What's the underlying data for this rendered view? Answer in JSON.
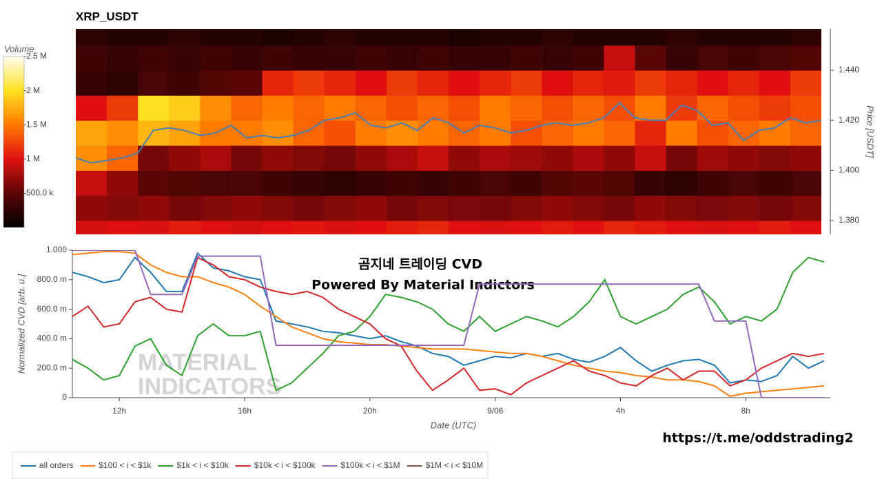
{
  "chart_data": [
    {
      "type": "heatmap",
      "title": "XRP_USDT",
      "colorbar_title": "Volume",
      "y_label": "Price [USDT]",
      "xlim": [
        10.5,
        34.5
      ],
      "xbins": [
        10.5,
        11.5,
        12.5,
        13.5,
        14.5,
        15.5,
        16.5,
        17.5,
        18.5,
        19.5,
        20.5,
        21.5,
        22.5,
        23.5,
        24.5,
        25.5,
        26.5,
        27.5,
        28.5,
        29.5,
        30.5,
        31.5,
        32.5,
        33.5,
        34.5
      ],
      "ybins": [
        1.37,
        1.38,
        1.39,
        1.4,
        1.41,
        1.42,
        1.43,
        1.44,
        1.45,
        1.46
      ],
      "z": [
        [
          950000,
          1000000,
          980000,
          1050000,
          1000000,
          950000,
          1000000,
          1020000,
          980000,
          1000000,
          1050000,
          1100000,
          1000000,
          980000,
          1000000,
          1050000,
          1000000,
          1100000,
          1050000,
          1000000,
          980000,
          1000000,
          1050000,
          1000000
        ],
        [
          700000,
          650000,
          700000,
          600000,
          650000,
          700000,
          650000,
          600000,
          650000,
          700000,
          600000,
          650000,
          620000,
          600000,
          650000,
          700000,
          650000,
          600000,
          700000,
          650000,
          620000,
          650000,
          600000,
          650000
        ],
        [
          900000,
          700000,
          500000,
          450000,
          400000,
          400000,
          350000,
          300000,
          250000,
          300000,
          350000,
          300000,
          350000,
          400000,
          350000,
          450000,
          500000,
          450000,
          300000,
          250000,
          350000,
          400000,
          350000,
          400000
        ],
        [
          1600000,
          1400000,
          600000,
          700000,
          800000,
          600000,
          700000,
          650000,
          600000,
          700000,
          800000,
          900000,
          700000,
          800000,
          750000,
          700000,
          800000,
          700000,
          900000,
          600000,
          750000,
          700000,
          650000,
          700000
        ],
        [
          1700000,
          1600000,
          1800000,
          1700000,
          1500000,
          1500000,
          1600000,
          1400000,
          1300000,
          1500000,
          1600000,
          1500000,
          1400000,
          1500000,
          1300000,
          1400000,
          1500000,
          1400000,
          1100000,
          1500000,
          1300000,
          1400000,
          1500000,
          1400000
        ],
        [
          1000000,
          1200000,
          2000000,
          1900000,
          1600000,
          1400000,
          1500000,
          1400000,
          1500000,
          1400000,
          1300000,
          1400000,
          1300000,
          1500000,
          1400000,
          1300000,
          1400000,
          1300000,
          1500000,
          1200000,
          1400000,
          1300000,
          1200000,
          1300000
        ],
        [
          300000,
          250000,
          400000,
          350000,
          450000,
          500000,
          1100000,
          1200000,
          1100000,
          1000000,
          1200000,
          1100000,
          1000000,
          1100000,
          1200000,
          1000000,
          1100000,
          1050000,
          1200000,
          1100000,
          1000000,
          1100000,
          1000000,
          1200000
        ],
        [
          350000,
          300000,
          350000,
          300000,
          350000,
          300000,
          350000,
          300000,
          300000,
          350000,
          300000,
          350000,
          300000,
          300000,
          350000,
          300000,
          350000,
          900000,
          500000,
          300000,
          400000,
          350000,
          400000,
          450000
        ],
        [
          250000,
          200000,
          200000,
          250000,
          200000,
          200000,
          150000,
          200000,
          250000,
          200000,
          200000,
          200000,
          150000,
          200000,
          200000,
          250000,
          200000,
          200000,
          200000,
          250000,
          200000,
          200000,
          200000,
          250000
        ]
      ],
      "zlim": [
        0,
        2500000
      ],
      "colorscale": [
        "#000000",
        "#5a0606",
        "#e01010",
        "#ff7a00",
        "#ffe020",
        "#fffff0"
      ],
      "colorbar_ticks": [
        {
          "value": 500000,
          "label": "500.0 k"
        },
        {
          "value": 1000000,
          "label": "1 M"
        },
        {
          "value": 1500000,
          "label": "1.5 M"
        },
        {
          "value": 2000000,
          "label": "2 M"
        },
        {
          "value": 2500000,
          "label": "2.5 M"
        }
      ],
      "ylim": [
        1.3745,
        1.4565
      ],
      "yticks": [
        {
          "value": 1.38,
          "label": "1.380"
        },
        {
          "value": 1.4,
          "label": "1.400"
        },
        {
          "value": 1.42,
          "label": "1.420"
        },
        {
          "value": 1.44,
          "label": "1.440"
        }
      ],
      "x": [
        10.5,
        11,
        11.5,
        12,
        12.5,
        13,
        13.5,
        14,
        14.5,
        15,
        15.5,
        16,
        16.5,
        17,
        17.5,
        18,
        18.5,
        19,
        19.5,
        20,
        20.5,
        21,
        21.5,
        22,
        22.5,
        23,
        23.5,
        24,
        24.5,
        25,
        25.5,
        26,
        26.5,
        27,
        27.5,
        28,
        28.5,
        29,
        29.5,
        30,
        30.5,
        31,
        31.5,
        32,
        32.5,
        33,
        33.5,
        34,
        34.5
      ],
      "series": [
        {
          "color": "#4a7fb0",
          "values": [
            1.405,
            1.403,
            1.404,
            1.405,
            1.407,
            1.416,
            1.417,
            1.416,
            1.414,
            1.415,
            1.418,
            1.413,
            1.414,
            1.413,
            1.414,
            1.416,
            1.42,
            1.421,
            1.423,
            1.418,
            1.417,
            1.419,
            1.416,
            1.421,
            1.419,
            1.415,
            1.418,
            1.417,
            1.415,
            1.416,
            1.418,
            1.419,
            1.418,
            1.419,
            1.421,
            1.427,
            1.421,
            1.42,
            1.42,
            1.426,
            1.424,
            1.418,
            1.419,
            1.412,
            1.416,
            1.417,
            1.421,
            1.419,
            1.42
          ]
        }
      ]
    },
    {
      "type": "line",
      "x_label": "Date (UTC)",
      "y_label": "Normalized CVD [arb. u.]",
      "annotations": [
        "곰지네 트레이딩 CVD",
        "Powered By Material Indictors",
        "https://t.me/oddstrading2"
      ],
      "watermark": [
        "MATERIAL",
        "INDICATORS"
      ],
      "xlim": [
        10.5,
        34.7
      ],
      "ylim": [
        0,
        1
      ],
      "xticks": [
        {
          "value": 12,
          "label": "12h"
        },
        {
          "value": 16,
          "label": "16h"
        },
        {
          "value": 20,
          "label": "20h"
        },
        {
          "value": 24,
          "label": "9/06"
        },
        {
          "value": 28,
          "label": "4h"
        },
        {
          "value": 32,
          "label": "8h"
        }
      ],
      "yticks": [
        0,
        {
          "value": 0.2,
          "label": "200.0 m"
        },
        {
          "value": 0.4,
          "label": "400.0 m"
        },
        {
          "value": 0.6,
          "label": "600.0 m"
        },
        {
          "value": 0.8,
          "label": "800.0 m"
        },
        {
          "value": 1,
          "label": "1.000"
        }
      ],
      "x": [
        10.5,
        11,
        11.5,
        12,
        12.5,
        13,
        13.5,
        14,
        14.5,
        15,
        15.5,
        16,
        16.5,
        17,
        17.5,
        18,
        18.5,
        19,
        19.5,
        20,
        20.5,
        21,
        21.5,
        22,
        22.5,
        23,
        23.5,
        24,
        24.5,
        25,
        25.5,
        26,
        26.5,
        27,
        27.5,
        28,
        28.5,
        29,
        29.5,
        30,
        30.5,
        31,
        31.5,
        32,
        32.5,
        33,
        33.5,
        34,
        34.5
      ],
      "series": [
        {
          "name": "all orders",
          "color": "#1f77b4",
          "values": [
            0.85,
            0.82,
            0.78,
            0.8,
            0.95,
            0.85,
            0.72,
            0.72,
            0.98,
            0.88,
            0.86,
            0.82,
            0.8,
            0.52,
            0.5,
            0.48,
            0.45,
            0.44,
            0.42,
            0.4,
            0.42,
            0.38,
            0.35,
            0.3,
            0.28,
            0.22,
            0.25,
            0.28,
            0.27,
            0.3,
            0.28,
            0.3,
            0.26,
            0.24,
            0.28,
            0.34,
            0.25,
            0.18,
            0.22,
            0.25,
            0.26,
            0.22,
            0.1,
            0.12,
            0.11,
            0.15,
            0.28,
            0.2,
            0.25
          ]
        },
        {
          "name": "$100 < i < $1k",
          "color": "#ff7f0e",
          "values": [
            0.97,
            0.98,
            0.99,
            0.99,
            0.98,
            0.9,
            0.85,
            0.82,
            0.82,
            0.78,
            0.75,
            0.7,
            0.62,
            0.55,
            0.48,
            0.44,
            0.4,
            0.38,
            0.37,
            0.36,
            0.36,
            0.35,
            0.34,
            0.33,
            0.33,
            0.33,
            0.32,
            0.31,
            0.3,
            0.3,
            0.28,
            0.25,
            0.22,
            0.2,
            0.18,
            0.17,
            0.15,
            0.14,
            0.12,
            0.12,
            0.11,
            0.08,
            0.01,
            0.03,
            0.04,
            0.05,
            0.06,
            0.07,
            0.08
          ]
        },
        {
          "name": "$1k < i < $10k",
          "color": "#2ca02c",
          "values": [
            0.26,
            0.2,
            0.12,
            0.15,
            0.35,
            0.4,
            0.22,
            0.15,
            0.42,
            0.5,
            0.42,
            0.42,
            0.45,
            0.05,
            0.1,
            0.2,
            0.3,
            0.42,
            0.45,
            0.55,
            0.7,
            0.68,
            0.65,
            0.6,
            0.5,
            0.45,
            0.55,
            0.45,
            0.5,
            0.55,
            0.52,
            0.48,
            0.55,
            0.65,
            0.8,
            0.55,
            0.5,
            0.55,
            0.6,
            0.7,
            0.75,
            0.65,
            0.5,
            0.55,
            0.52,
            0.6,
            0.85,
            0.95,
            0.92
          ]
        },
        {
          "name": "$10k < i < $100k",
          "color": "#d62728",
          "values": [
            0.55,
            0.62,
            0.48,
            0.5,
            0.65,
            0.68,
            0.6,
            0.58,
            0.95,
            0.9,
            0.82,
            0.8,
            0.75,
            0.72,
            0.7,
            0.72,
            0.68,
            0.6,
            0.55,
            0.5,
            0.4,
            0.35,
            0.18,
            0.05,
            0.12,
            0.2,
            0.05,
            0.06,
            0.02,
            0.1,
            0.15,
            0.2,
            0.25,
            0.18,
            0.15,
            0.1,
            0.08,
            0.15,
            0.2,
            0.12,
            0.18,
            0.18,
            0.08,
            0.12,
            0.2,
            0.25,
            0.3,
            0.28,
            0.3
          ]
        },
        {
          "name": "$100k < i < $1M",
          "color": "#9467bd",
          "values": [
            1,
            1,
            1,
            1,
            1,
            0.7,
            0.7,
            0.7,
            0.96,
            0.96,
            0.96,
            0.96,
            0.96,
            0.355,
            0.355,
            0.355,
            0.355,
            0.355,
            0.355,
            0.355,
            0.355,
            0.355,
            0.355,
            0.355,
            0.355,
            0.355,
            0.77,
            0.77,
            0.77,
            0.77,
            0.77,
            0.77,
            0.77,
            0.77,
            0.77,
            0.77,
            0.77,
            0.77,
            0.77,
            0.77,
            0.77,
            0.52,
            0.52,
            0.52,
            0,
            0,
            0,
            0,
            0
          ]
        },
        {
          "name": "$1M < i < $10M",
          "color": "#8c564b",
          "values": [
            null,
            null,
            null,
            null,
            null,
            null,
            null,
            null,
            null,
            null,
            null,
            null,
            null,
            null,
            null,
            null,
            null,
            null,
            null,
            null,
            null,
            null,
            null,
            null,
            null,
            null,
            null,
            null,
            null,
            null,
            null,
            null,
            null,
            null,
            null,
            null,
            null,
            null,
            null,
            null,
            null,
            null,
            null,
            null,
            null,
            null,
            null,
            null,
            null
          ]
        }
      ]
    }
  ]
}
